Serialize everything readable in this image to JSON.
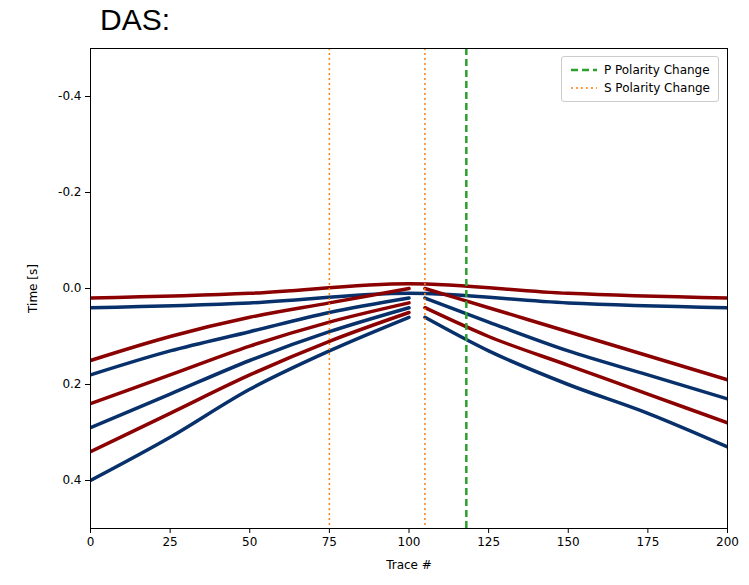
{
  "chart_data": {
    "type": "line",
    "title": "DAS:",
    "x_label": "Trace #",
    "y_label": "Time [s]",
    "xlim": [
      0,
      200
    ],
    "xticks": [
      0,
      25,
      50,
      75,
      100,
      125,
      150,
      175,
      200
    ],
    "ylim": [
      -0.5,
      0.5
    ],
    "yticks": [
      -0.4,
      -0.2,
      {
        "value": 0,
        "label": "0.0"
      },
      0.2,
      0.4
    ],
    "legend": "upper right",
    "series": [
      {
        "color": "#8b0000",
        "x": [
          0,
          50,
          100,
          150,
          200
        ],
        "values": [
          0.02,
          0.01,
          -0.01,
          0.01,
          0.02
        ]
      },
      {
        "color": "#08306b",
        "x": [
          0,
          50,
          100,
          150,
          200
        ],
        "values": [
          0.04,
          0.03,
          0.01,
          0.03,
          0.04
        ]
      },
      {
        "color": "#8b0000",
        "x": [
          0,
          25,
          50,
          75,
          100
        ],
        "values": [
          0.15,
          0.1,
          0.06,
          0.03,
          0.0
        ]
      },
      {
        "color": "#08306b",
        "x": [
          0,
          25,
          50,
          75,
          100
        ],
        "values": [
          0.18,
          0.13,
          0.09,
          0.05,
          0.02
        ]
      },
      {
        "color": "#8b0000",
        "x": [
          0,
          25,
          50,
          75,
          100
        ],
        "values": [
          0.24,
          0.18,
          0.12,
          0.07,
          0.03
        ]
      },
      {
        "color": "#08306b",
        "x": [
          0,
          25,
          50,
          75,
          100
        ],
        "values": [
          0.29,
          0.22,
          0.15,
          0.09,
          0.04
        ]
      },
      {
        "color": "#8b0000",
        "x": [
          0,
          25,
          50,
          75,
          100
        ],
        "values": [
          0.34,
          0.26,
          0.18,
          0.11,
          0.05
        ]
      },
      {
        "color": "#08306b",
        "x": [
          0,
          25,
          50,
          75,
          100
        ],
        "values": [
          0.4,
          0.31,
          0.21,
          0.13,
          0.06
        ]
      },
      {
        "color": "#8b0000",
        "x": [
          105,
          125,
          150,
          175,
          200
        ],
        "values": [
          0.0,
          0.04,
          0.09,
          0.14,
          0.19
        ]
      },
      {
        "color": "#08306b",
        "x": [
          105,
          125,
          150,
          175,
          200
        ],
        "values": [
          0.02,
          0.07,
          0.13,
          0.18,
          0.23
        ]
      },
      {
        "color": "#8b0000",
        "x": [
          105,
          125,
          150,
          175,
          200
        ],
        "values": [
          0.04,
          0.1,
          0.16,
          0.22,
          0.28
        ]
      },
      {
        "color": "#08306b",
        "x": [
          105,
          125,
          150,
          175,
          200
        ],
        "values": [
          0.06,
          0.13,
          0.2,
          0.26,
          0.33
        ]
      }
    ],
    "vlines": [
      {
        "name": "P Polarity Change",
        "x": [
          118
        ],
        "color": "#2ca02c",
        "line_style": "dashed"
      },
      {
        "name": "S Polarity Change",
        "x": [
          75,
          105
        ],
        "color": "#ff7f0e",
        "line_style": "dotted"
      }
    ]
  }
}
